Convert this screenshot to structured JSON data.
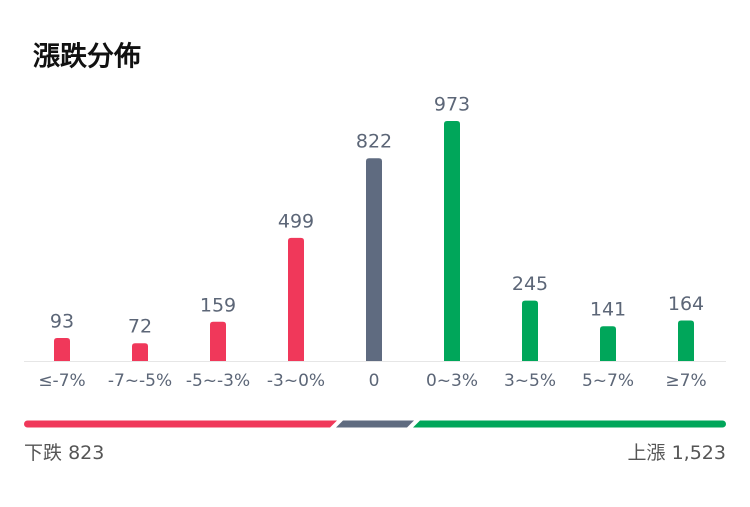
{
  "chart_data": {
    "type": "bar",
    "title": "漲跌分佈",
    "categories": [
      "≤-7%",
      "-7~-5%",
      "-5~-3%",
      "-3~0%",
      "0",
      "0~3%",
      "3~5%",
      "5~7%",
      "≥7%"
    ],
    "values": [
      93,
      72,
      159,
      499,
      822,
      973,
      245,
      141,
      164
    ],
    "colors": [
      "#f0385a",
      "#f0385a",
      "#f0385a",
      "#f0385a",
      "#5f6b80",
      "#00a65a",
      "#00a65a",
      "#00a65a",
      "#00a65a"
    ],
    "summary": {
      "down_label": "下跌",
      "down_count": "823",
      "up_label": "上漲",
      "up_count": "1,523"
    }
  }
}
